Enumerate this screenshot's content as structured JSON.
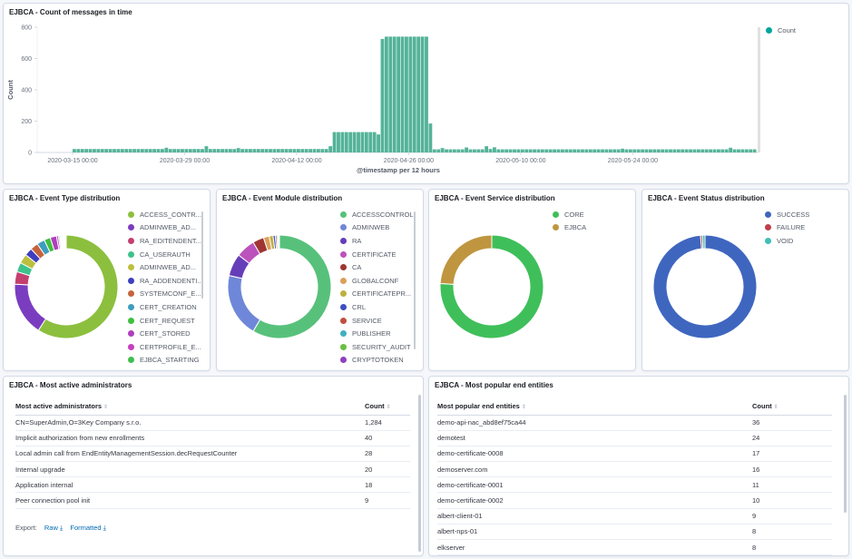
{
  "histogram": {
    "title": "EJBCA - Count of messages in time",
    "chart_data": {
      "type": "bar",
      "title": "",
      "xlabel": "@timestamp per 12 hours",
      "ylabel": "Count",
      "ylim": [
        0,
        800
      ],
      "yticks": [
        0,
        200,
        400,
        600,
        800
      ],
      "xtick_labels": [
        "2020-03-15 00:00",
        "2020-03-29 00:00",
        "2020-04-12 00:00",
        "2020-04-26 00:00",
        "2020-05-10 00:00",
        "2020-05-24 00:00"
      ],
      "start": "2020-03-15 00:00",
      "interval": "12 hours",
      "series": [
        {
          "name": "Count",
          "color": "#54b399",
          "values": [
            22,
            22,
            22,
            22,
            22,
            22,
            22,
            22,
            22,
            22,
            22,
            22,
            22,
            22,
            22,
            22,
            22,
            22,
            22,
            22,
            22,
            22,
            22,
            30,
            22,
            22,
            22,
            22,
            22,
            22,
            22,
            22,
            22,
            40,
            22,
            22,
            22,
            22,
            22,
            22,
            22,
            28,
            22,
            22,
            22,
            22,
            22,
            22,
            22,
            22,
            22,
            22,
            22,
            22,
            22,
            22,
            22,
            22,
            22,
            22,
            22,
            22,
            22,
            22,
            40,
            130,
            130,
            130,
            130,
            130,
            130,
            130,
            130,
            130,
            130,
            130,
            115,
            725,
            740,
            740,
            740,
            740,
            740,
            740,
            740,
            740,
            740,
            740,
            740,
            185,
            20,
            20,
            28,
            20,
            20,
            20,
            20,
            20,
            32,
            20,
            20,
            20,
            20,
            40,
            22,
            33,
            20,
            20,
            20,
            20,
            20,
            20,
            20,
            20,
            20,
            20,
            20,
            20,
            20,
            20,
            20,
            20,
            20,
            20,
            20,
            20,
            20,
            20,
            20,
            20,
            20,
            20,
            20,
            20,
            20,
            20,
            20,
            24,
            20,
            20,
            20,
            20,
            20,
            20,
            20,
            20,
            20,
            20,
            20,
            20,
            20,
            20,
            20,
            20,
            20,
            20,
            20,
            20,
            20,
            20,
            20,
            20,
            20,
            20,
            30,
            20,
            20,
            20,
            20,
            20,
            20
          ]
        }
      ],
      "grid": false,
      "legend": "top-right"
    }
  },
  "pies": [
    {
      "title": "EJBCA - Event Type distribution",
      "chart_data": {
        "type": "pie",
        "donut": true,
        "labels": [
          "ACCESS_CONTR...",
          "ADMINWEB_AD...",
          "RA_EDITENDENT...",
          "CA_USERAUTH",
          "ADMINWEB_AD...",
          "RA_ADDENDENTI...",
          "SYSTEMCONF_E...",
          "CERT_CREATION",
          "CERT_REQUEST",
          "CERT_STORED",
          "CERTPROFILE_E...",
          "EJBCA_STARTING"
        ],
        "values": [
          60,
          17,
          4,
          3,
          3,
          2.5,
          2.5,
          2.5,
          2,
          2,
          0.6,
          0.4
        ],
        "colors": [
          "#8cbf3e",
          "#7a3dbf",
          "#c43f6d",
          "#3ec28b",
          "#bcbf3e",
          "#3e3fbf",
          "#c5643e",
          "#3e9dbf",
          "#3fbf3f",
          "#b03ebf",
          "#c73fbf",
          "#3fbf4f"
        ],
        "unlabeled_values": [
          0.3,
          0.3,
          0.3,
          0.2,
          0.2,
          0.2,
          0.2,
          0.2,
          0.2
        ],
        "unlabeled_colors": [
          "#bf3f8c",
          "#3fbfa6",
          "#bf8c3f",
          "#8c3fbf",
          "#3f8cbf",
          "#a6bf3f",
          "#bf3f3f",
          "#3fbf8c",
          "#d0d0d0"
        ],
        "legend": "right"
      }
    },
    {
      "title": "EJBCA - Event Module distribution",
      "chart_data": {
        "type": "pie",
        "donut": true,
        "labels": [
          "ACCESSCONTROL",
          "ADMINWEB",
          "RA",
          "CERTIFICATE",
          "CA",
          "GLOBALCONF",
          "CERTIFICATEPR...",
          "CRL",
          "SERVICE",
          "PUBLISHER",
          "SECURITY_AUDIT",
          "CRYPTOTOKEN"
        ],
        "values": [
          58.5,
          20,
          7,
          6,
          3.5,
          1.8,
          1.2,
          0.7,
          0.5,
          0.4,
          0.2,
          0.2
        ],
        "colors": [
          "#57c17b",
          "#6f87d8",
          "#663db8",
          "#bc52bc",
          "#9e3533",
          "#daa05d",
          "#bfaf40",
          "#4050bf",
          "#bf5040",
          "#40afbf",
          "#6abf40",
          "#8f40bf"
        ],
        "legend": "right"
      }
    },
    {
      "title": "EJBCA - Event Service distribution",
      "chart_data": {
        "type": "pie",
        "donut": true,
        "labels": [
          "CORE",
          "EJBCA"
        ],
        "values": [
          76,
          24
        ],
        "colors": [
          "#3fbf5a",
          "#bf963f"
        ],
        "legend": "right"
      }
    },
    {
      "title": "EJBCA - Event Status distribution",
      "chart_data": {
        "type": "pie",
        "donut": true,
        "labels": [
          "SUCCESS",
          "FAILURE",
          "VOID"
        ],
        "values": [
          98.6,
          0.6,
          0.8
        ],
        "colors": [
          "#3f66bf",
          "#bf3f4a",
          "#3fbfb5"
        ],
        "legend": "right"
      }
    }
  ],
  "admins": {
    "title": "EJBCA - Most active administrators",
    "columns": [
      "Most active administrators",
      "Count"
    ],
    "rows": [
      [
        "CN=SuperAdmin,O=3Key Company s.r.o.",
        "1,284"
      ],
      [
        "Implicit authorization from new enrollments",
        "40"
      ],
      [
        "Local admin call from EndEntityManagementSession.decRequestCounter",
        "28"
      ],
      [
        "Internal upgrade",
        "20"
      ],
      [
        "Application internal",
        "18"
      ],
      [
        "Peer connection pool init",
        "9"
      ]
    ],
    "export_label": "Export:",
    "export_raw": "Raw",
    "export_formatted": "Formatted"
  },
  "entities": {
    "title": "EJBCA - Most popular end entities",
    "columns": [
      "Most popular end entities",
      "Count"
    ],
    "rows": [
      [
        "demo-api-nac_abd8ef75ca44",
        "36"
      ],
      [
        "demotest",
        "24"
      ],
      [
        "demo-certificate-0008",
        "17"
      ],
      [
        "demoserver.com",
        "16"
      ],
      [
        "demo-certificate-0001",
        "11"
      ],
      [
        "demo-certificate-0002",
        "10"
      ],
      [
        "albert-client-01",
        "9"
      ],
      [
        "albert-nps-01",
        "8"
      ],
      [
        "elkserver",
        "8"
      ]
    ]
  }
}
